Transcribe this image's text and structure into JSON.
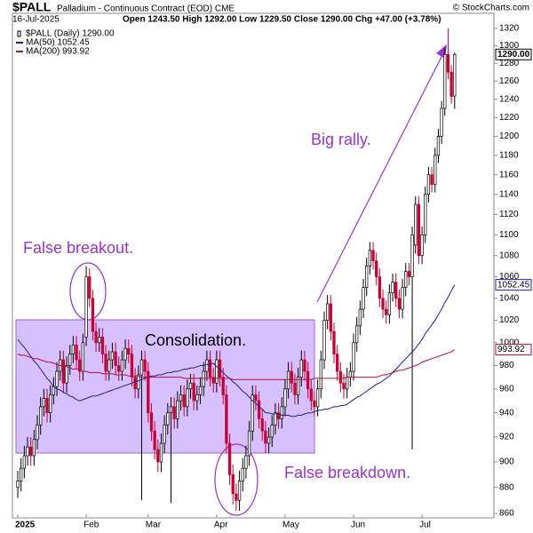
{
  "chart_data": {
    "type": "candlestick",
    "symbol": "$PALL",
    "title": "Palladium - Continuous Contract (EOD) CME",
    "date": "16-Jul-2025",
    "quote": "Open 1243.50 High 1292.00 Low 1229.50 Close 1290.00 Chg +47.00 (+3.78%)",
    "credit": "© StockCharts.com",
    "price_name": "$PALL (Daily) 1290.00",
    "price_label": "1290.00",
    "up_color": "#000000",
    "down_color": "#cc0033",
    "log_scale": true,
    "grid": false,
    "ylim": [
      860,
      1320
    ],
    "yticks": [
      860,
      880,
      900,
      920,
      940,
      960,
      980,
      1000,
      1020,
      1040,
      1060,
      1080,
      1100,
      1120,
      1140,
      1160,
      1180,
      1200,
      1220,
      1240,
      1260,
      1280,
      1300,
      1320
    ],
    "categories": [
      "2025",
      null,
      null,
      null,
      null,
      null,
      null,
      null,
      null,
      null,
      null,
      null,
      null,
      null,
      null,
      null,
      null,
      null,
      null,
      null,
      null,
      "Feb",
      null,
      null,
      null,
      null,
      null,
      null,
      null,
      null,
      null,
      null,
      null,
      null,
      null,
      null,
      null,
      null,
      null,
      null,
      "Mar",
      null,
      null,
      null,
      null,
      null,
      null,
      null,
      null,
      null,
      null,
      null,
      null,
      null,
      null,
      null,
      null,
      null,
      null,
      null,
      null,
      "Apr",
      null,
      null,
      null,
      null,
      null,
      null,
      null,
      null,
      null,
      null,
      null,
      null,
      null,
      null,
      null,
      null,
      null,
      null,
      null,
      null,
      "May",
      null,
      null,
      null,
      null,
      null,
      null,
      null,
      null,
      null,
      null,
      null,
      null,
      null,
      null,
      null,
      null,
      null,
      null,
      null,
      null,
      "Jun",
      null,
      null,
      null,
      null,
      null,
      null,
      null,
      null,
      null,
      null,
      null,
      null,
      null,
      null,
      null,
      null,
      null,
      null,
      null,
      null,
      "Jul",
      null,
      null,
      null,
      null,
      null,
      null,
      null,
      null,
      null,
      null
    ],
    "open": [
      880,
      885,
      895,
      905,
      912,
      905,
      918,
      930,
      945,
      952,
      940,
      955,
      962,
      975,
      985,
      965,
      980,
      990,
      998,
      985,
      975,
      1005,
      1060,
      1040,
      1010,
      1000,
      1005,
      990,
      975,
      985,
      992,
      980,
      975,
      985,
      995,
      990,
      970,
      960,
      972,
      985,
      975,
      940,
      925,
      910,
      900,
      915,
      930,
      940,
      945,
      935,
      950,
      955,
      945,
      960,
      965,
      950,
      955,
      962,
      975,
      985,
      970,
      965,
      985,
      970,
      955,
      915,
      890,
      875,
      870,
      885,
      895,
      905,
      925,
      955,
      950,
      935,
      925,
      915,
      920,
      930,
      940,
      935,
      945,
      960,
      975,
      965,
      955,
      970,
      985,
      975,
      960,
      950,
      945,
      960,
      985,
      1020,
      1035,
      1010,
      990,
      975,
      965,
      960,
      970,
      975,
      1000,
      1015,
      1030,
      1050,
      1070,
      1085,
      1075,
      1060,
      1040,
      1030,
      1025,
      1045,
      1055,
      1040,
      1030,
      1050,
      1065,
      1060,
      1090,
      1130,
      1080,
      1100,
      1140,
      1160,
      1150,
      1180,
      1200,
      1230,
      1290,
      1270,
      1243.5
    ],
    "high": [
      893,
      903,
      913,
      920,
      920,
      926,
      938,
      953,
      960,
      960,
      963,
      970,
      983,
      993,
      993,
      988,
      998,
      1006,
      1006,
      993,
      1008,
      1070,
      1068,
      1048,
      1018,
      1013,
      1013,
      998,
      993,
      1000,
      1000,
      988,
      993,
      1003,
      1003,
      998,
      978,
      980,
      993,
      993,
      983,
      948,
      933,
      918,
      923,
      938,
      948,
      953,
      953,
      958,
      963,
      963,
      968,
      973,
      973,
      963,
      970,
      983,
      993,
      993,
      978,
      993,
      993,
      978,
      963,
      923,
      898,
      883,
      893,
      903,
      913,
      933,
      963,
      963,
      958,
      943,
      933,
      928,
      938,
      948,
      948,
      953,
      968,
      983,
      983,
      973,
      978,
      993,
      993,
      983,
      968,
      958,
      968,
      993,
      1028,
      1043,
      1043,
      1018,
      998,
      983,
      973,
      978,
      983,
      1008,
      1023,
      1038,
      1058,
      1078,
      1093,
      1093,
      1083,
      1068,
      1048,
      1038,
      1053,
      1063,
      1063,
      1048,
      1058,
      1073,
      1073,
      1108,
      1138,
      1138,
      1108,
      1148,
      1168,
      1168,
      1188,
      1208,
      1238,
      1298,
      1320,
      1278,
      1292
    ],
    "low": [
      872,
      877,
      887,
      897,
      897,
      897,
      910,
      922,
      937,
      932,
      932,
      947,
      954,
      967,
      957,
      957,
      972,
      982,
      977,
      967,
      967,
      997,
      1032,
      1002,
      992,
      992,
      982,
      967,
      967,
      977,
      972,
      967,
      967,
      977,
      982,
      962,
      952,
      952,
      870,
      967,
      932,
      917,
      902,
      892,
      892,
      907,
      922,
      868,
      927,
      927,
      942,
      937,
      937,
      952,
      942,
      942,
      947,
      954,
      967,
      962,
      957,
      957,
      962,
      947,
      907,
      882,
      867,
      862,
      862,
      877,
      887,
      897,
      917,
      942,
      927,
      917,
      907,
      907,
      912,
      922,
      927,
      927,
      937,
      952,
      957,
      947,
      947,
      962,
      967,
      952,
      942,
      937,
      937,
      952,
      977,
      1012,
      1002,
      982,
      967,
      957,
      952,
      952,
      962,
      967,
      992,
      1007,
      1022,
      1042,
      1062,
      1067,
      1052,
      1032,
      1022,
      1017,
      1017,
      1037,
      1032,
      1022,
      1022,
      1042,
      1052,
      910,
      1082,
      1072,
      1072,
      1092,
      1132,
      1142,
      1142,
      1172,
      1192,
      1222,
      1262,
      1235,
      1229.5
    ],
    "close": [
      885,
      895,
      905,
      912,
      905,
      918,
      930,
      945,
      952,
      940,
      955,
      962,
      975,
      985,
      965,
      980,
      990,
      998,
      985,
      975,
      1000,
      1060,
      1040,
      1010,
      1000,
      1005,
      990,
      975,
      985,
      992,
      980,
      975,
      985,
      995,
      990,
      970,
      960,
      972,
      985,
      975,
      940,
      925,
      910,
      900,
      915,
      930,
      940,
      945,
      935,
      950,
      955,
      945,
      960,
      965,
      950,
      955,
      962,
      975,
      985,
      970,
      965,
      985,
      970,
      955,
      915,
      890,
      875,
      870,
      885,
      895,
      905,
      925,
      955,
      950,
      935,
      925,
      915,
      920,
      930,
      940,
      935,
      945,
      960,
      975,
      965,
      955,
      970,
      985,
      975,
      960,
      950,
      945,
      960,
      985,
      1020,
      1035,
      1010,
      990,
      975,
      965,
      960,
      970,
      975,
      1000,
      1015,
      1030,
      1050,
      1070,
      1085,
      1075,
      1060,
      1040,
      1030,
      1025,
      1045,
      1055,
      1040,
      1030,
      1050,
      1065,
      1060,
      1100,
      1130,
      1080,
      1100,
      1140,
      1160,
      1150,
      1180,
      1200,
      1230,
      1290,
      1270,
      1243,
      1290
    ],
    "series": [
      {
        "name": "MA(50) 1052.45",
        "color": "#1f1f8f",
        "last_value_label": "1052.45",
        "values": [
          1003,
          999,
          996,
          992,
          988,
          984,
          981,
          977,
          973,
          969,
          966,
          962,
          960,
          959,
          957,
          956,
          954,
          953,
          951,
          950,
          951,
          952,
          953,
          954,
          954,
          955,
          956,
          957,
          958,
          959,
          960,
          961,
          962,
          963,
          964,
          965,
          966,
          967,
          968,
          969,
          970,
          971,
          971,
          972,
          972,
          973,
          974,
          974,
          975,
          975,
          976,
          977,
          977,
          978,
          978,
          979,
          980,
          980,
          981,
          981,
          982,
          979,
          977,
          974,
          971,
          969,
          966,
          964,
          961,
          958,
          956,
          953,
          950,
          948,
          945,
          943,
          940,
          940,
          939,
          939,
          939,
          938,
          938,
          938,
          937,
          937,
          938,
          938,
          939,
          940,
          940,
          941,
          942,
          942,
          943,
          943,
          944,
          945,
          945,
          946,
          946,
          947,
          949,
          951,
          953,
          954,
          956,
          958,
          960,
          962,
          964,
          965,
          967,
          969,
          971,
          974,
          977,
          980,
          983,
          986,
          989,
          992,
          995,
          999,
          1003,
          1008,
          1012,
          1016,
          1020,
          1025,
          1030,
          1036,
          1041,
          1047,
          1052.45
        ]
      },
      {
        "name": "MA(200) 993.92",
        "color": "#b0103a",
        "last_value_label": "993.92",
        "values": [
          990,
          989,
          989,
          988,
          987,
          986,
          986,
          985,
          984,
          983,
          983,
          982,
          981,
          980,
          980,
          979,
          978,
          977,
          977,
          976,
          975,
          975,
          974,
          974,
          974,
          974,
          973,
          973,
          973,
          973,
          972,
          972,
          972,
          972,
          971,
          971,
          971,
          971,
          970,
          970,
          970,
          970,
          970,
          970,
          970,
          970,
          970,
          970,
          970,
          970,
          970,
          969,
          969,
          969,
          969,
          969,
          969,
          969,
          969,
          969,
          969,
          969,
          969,
          969,
          969,
          969,
          968,
          968,
          968,
          968,
          968,
          968,
          968,
          968,
          968,
          968,
          968,
          968,
          968,
          968,
          968,
          968,
          968,
          968,
          968,
          968,
          968,
          968,
          968,
          968,
          968,
          969,
          969,
          969,
          969,
          969,
          969,
          969,
          969,
          969,
          969,
          970,
          970,
          970,
          970,
          970,
          970,
          970,
          970,
          970,
          970,
          971,
          972,
          972,
          973,
          974,
          975,
          976,
          976,
          977,
          978,
          979,
          980,
          981,
          983,
          984,
          985,
          986,
          987,
          988,
          989,
          990,
          991,
          992,
          993.92
        ]
      }
    ],
    "annotations": [
      "Big rally.",
      "False breakout.",
      "Consolidation.",
      "False breakdown."
    ]
  }
}
